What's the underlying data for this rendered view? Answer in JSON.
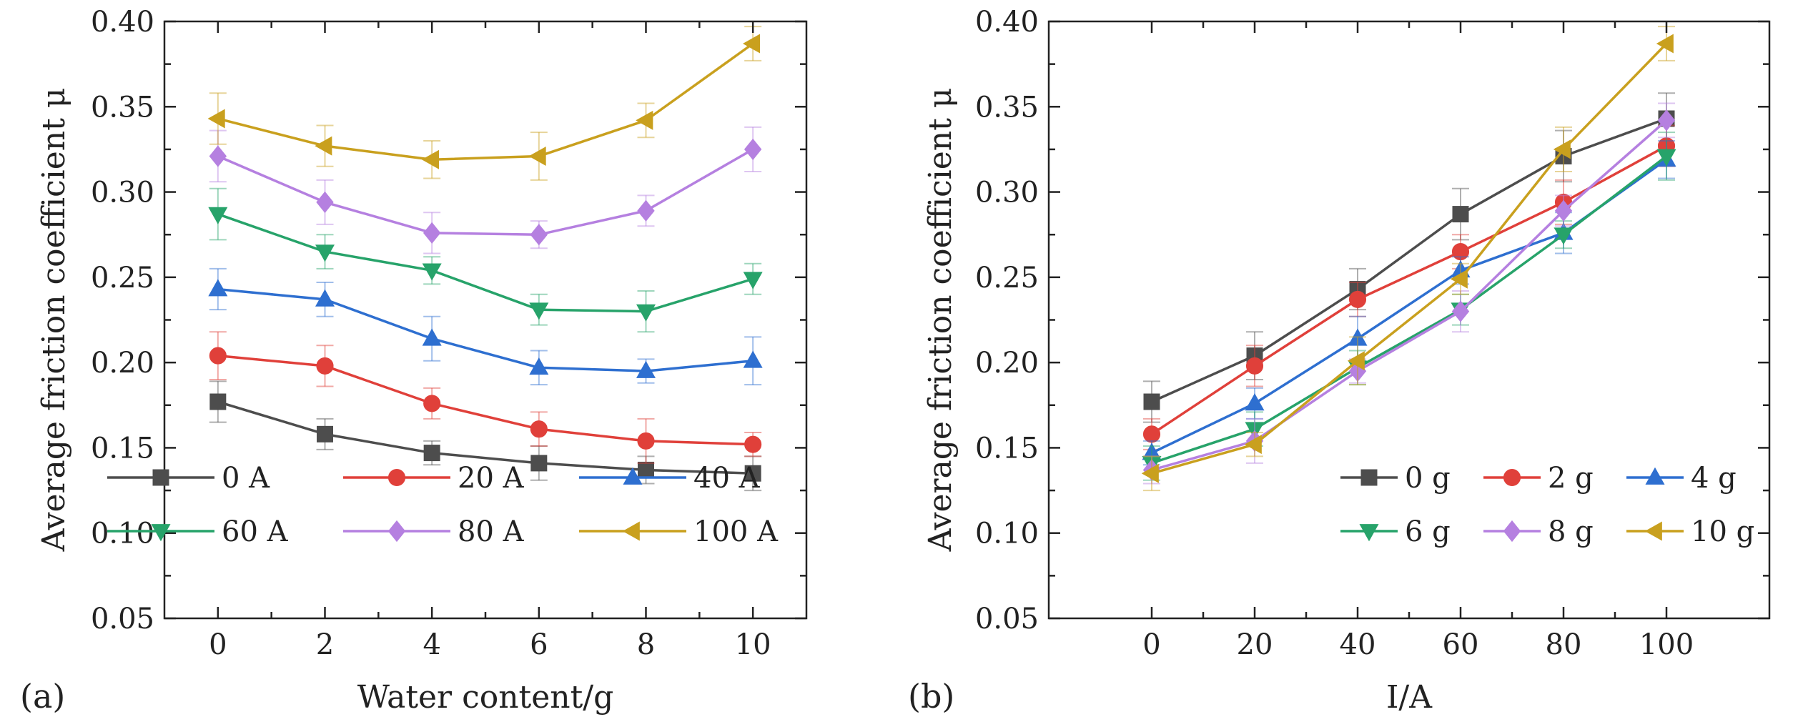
{
  "chart_data": [
    {
      "type": "line",
      "panel_label": "(a)",
      "xlabel": "Water content/g",
      "ylabel": "Average friction coefficient μ",
      "xlim": [
        -1,
        11
      ],
      "ylim": [
        0.05,
        0.4
      ],
      "x_ticks": [
        "0",
        "2",
        "4",
        "6",
        "8",
        "10"
      ],
      "y_ticks": [
        "0.05",
        "0.10",
        "0.15",
        "0.20",
        "0.25",
        "0.30",
        "0.35",
        "0.40"
      ],
      "legend_position": "bottom-inside",
      "x": [
        0,
        2,
        4,
        6,
        8,
        10
      ],
      "series": [
        {
          "name": "0 A",
          "color": "#4d4d4d",
          "marker": "square",
          "values": [
            0.177,
            0.158,
            0.147,
            0.141,
            0.137,
            0.135
          ],
          "errors": [
            0.012,
            0.009,
            0.007,
            0.01,
            0.008,
            0.01
          ]
        },
        {
          "name": "20 A",
          "color": "#e0403a",
          "marker": "circle",
          "values": [
            0.204,
            0.198,
            0.176,
            0.161,
            0.154,
            0.152
          ],
          "errors": [
            0.014,
            0.012,
            0.009,
            0.01,
            0.013,
            0.007
          ]
        },
        {
          "name": "40 A",
          "color": "#2e6fd0",
          "marker": "triangle-up",
          "values": [
            0.243,
            0.237,
            0.214,
            0.197,
            0.195,
            0.201
          ],
          "errors": [
            0.012,
            0.01,
            0.013,
            0.01,
            0.007,
            0.014
          ]
        },
        {
          "name": "60 A",
          "color": "#27a36a",
          "marker": "triangle-down",
          "values": [
            0.287,
            0.265,
            0.254,
            0.231,
            0.23,
            0.249
          ],
          "errors": [
            0.015,
            0.01,
            0.008,
            0.009,
            0.012,
            0.009
          ]
        },
        {
          "name": "80 A",
          "color": "#b580e0",
          "marker": "diamond",
          "values": [
            0.321,
            0.294,
            0.276,
            0.275,
            0.289,
            0.325
          ],
          "errors": [
            0.015,
            0.013,
            0.012,
            0.008,
            0.009,
            0.013
          ]
        },
        {
          "name": "100 A",
          "color": "#c9a01e",
          "marker": "triangle-left",
          "values": [
            0.343,
            0.327,
            0.319,
            0.321,
            0.342,
            0.387
          ],
          "errors": [
            0.015,
            0.012,
            0.011,
            0.014,
            0.01,
            0.01
          ]
        }
      ]
    },
    {
      "type": "line",
      "panel_label": "(b)",
      "xlabel": "I/A",
      "ylabel": "Average friction coefficient μ",
      "xlim": [
        -20,
        120
      ],
      "ylim": [
        0.05,
        0.4
      ],
      "x_ticks": [
        "0",
        "20",
        "40",
        "60",
        "80",
        "100"
      ],
      "y_ticks": [
        "0.05",
        "0.10",
        "0.15",
        "0.20",
        "0.25",
        "0.30",
        "0.35",
        "0.40"
      ],
      "legend_position": "bottom-right",
      "x": [
        0,
        20,
        40,
        60,
        80,
        100
      ],
      "series": [
        {
          "name": "0 g",
          "color": "#4d4d4d",
          "marker": "square",
          "values": [
            0.177,
            0.204,
            0.243,
            0.287,
            0.321,
            0.343
          ],
          "errors": [
            0.012,
            0.014,
            0.012,
            0.015,
            0.015,
            0.015
          ]
        },
        {
          "name": "2 g",
          "color": "#e0403a",
          "marker": "circle",
          "values": [
            0.158,
            0.198,
            0.237,
            0.265,
            0.294,
            0.327
          ],
          "errors": [
            0.009,
            0.012,
            0.01,
            0.01,
            0.013,
            0.012
          ]
        },
        {
          "name": "4 g",
          "color": "#2e6fd0",
          "marker": "triangle-up",
          "values": [
            0.147,
            0.176,
            0.214,
            0.254,
            0.276,
            0.319
          ],
          "errors": [
            0.007,
            0.009,
            0.013,
            0.008,
            0.012,
            0.011
          ]
        },
        {
          "name": "6 g",
          "color": "#27a36a",
          "marker": "triangle-down",
          "values": [
            0.141,
            0.161,
            0.197,
            0.231,
            0.275,
            0.321
          ],
          "errors": [
            0.01,
            0.01,
            0.01,
            0.009,
            0.008,
            0.014
          ]
        },
        {
          "name": "8 g",
          "color": "#b580e0",
          "marker": "diamond",
          "values": [
            0.137,
            0.154,
            0.195,
            0.23,
            0.289,
            0.342
          ],
          "errors": [
            0.008,
            0.013,
            0.007,
            0.012,
            0.009,
            0.01
          ]
        },
        {
          "name": "10 g",
          "color": "#c9a01e",
          "marker": "triangle-left",
          "values": [
            0.135,
            0.152,
            0.201,
            0.249,
            0.325,
            0.387
          ],
          "errors": [
            0.01,
            0.007,
            0.014,
            0.009,
            0.013,
            0.01
          ]
        }
      ]
    }
  ]
}
